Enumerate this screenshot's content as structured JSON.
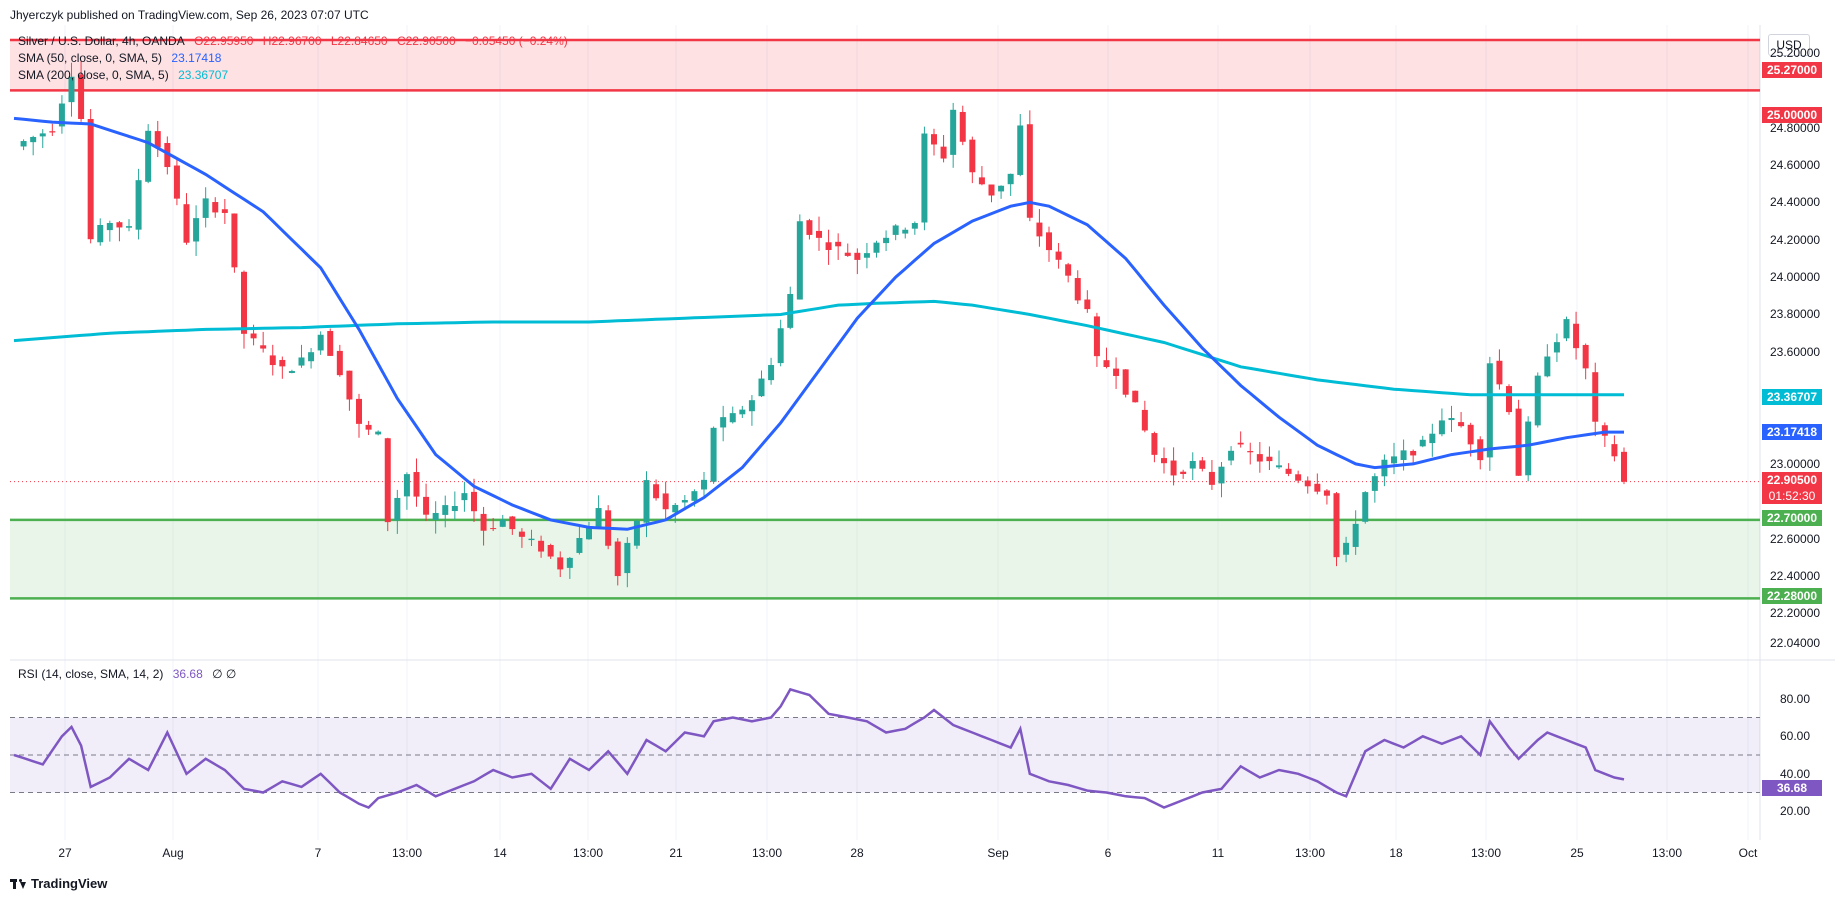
{
  "header": {
    "publisher": "Jhyerczyk published on TradingView.com, Sep 26, 2023 07:07 UTC",
    "symbol": "Silver / U.S. Dollar, 4h, OANDA",
    "open": "O22.95950",
    "high": "H22.96700",
    "low": "L22.84650",
    "close": "C22.90500",
    "change": "−0.05450 (−0.24%)",
    "sma50_label": "SMA (50, close, 0, SMA, 5)",
    "sma50_value": "23.17418",
    "sma200_label": "SMA (200, close, 0, SMA, 5)",
    "sma200_value": "23.36707",
    "rsi_label": "RSI (14, close, SMA, 14, 2)",
    "rsi_value": "36.68",
    "rsi_extra": "∅ ∅",
    "currency": "USD",
    "branding": "TradingView"
  },
  "colors": {
    "up": "#26a69a",
    "down": "#f23645",
    "sma50": "#2962ff",
    "sma200": "#00bcd4",
    "resistance": "#f23645",
    "support": "#4caf50",
    "rsi": "#7e57c2"
  },
  "levels": {
    "resistance_top": "25.27000",
    "resistance_bottom": "25.00000",
    "support_top": "22.70000",
    "support_bottom": "22.28000",
    "last_price": "22.90500",
    "countdown": "01:52:30",
    "sma200_tag": "23.36707",
    "sma50_tag": "23.17418",
    "rsi_tag": "36.68"
  },
  "chart_data": {
    "type": "candlestick",
    "ylim": [
      21.95,
      25.35
    ],
    "price_ticks": [
      "25.20000",
      "24.80000",
      "24.60000",
      "24.40000",
      "24.20000",
      "24.00000",
      "23.80000",
      "23.60000",
      "23.00000",
      "22.60000",
      "22.40000",
      "22.20000",
      "22.04000"
    ],
    "x_ticks": [
      "27",
      "Aug",
      "7",
      "13:00",
      "14",
      "13:00",
      "21",
      "13:00",
      "28",
      "Sep",
      "6",
      "11",
      "13:00",
      "18",
      "13:00",
      "25",
      "13:00",
      "Oct"
    ],
    "rsi_ticks": [
      "80.00",
      "60.00",
      "40.00",
      "20.00"
    ],
    "rsi_levels": [
      70,
      50,
      30
    ],
    "close_anchors": [
      [
        0,
        24.7
      ],
      [
        4,
        24.8
      ],
      [
        6,
        25.1
      ],
      [
        7,
        24.85
      ],
      [
        8,
        24.2
      ],
      [
        10,
        24.3
      ],
      [
        12,
        24.25
      ],
      [
        14,
        24.8
      ],
      [
        16,
        24.6
      ],
      [
        18,
        24.2
      ],
      [
        20,
        24.4
      ],
      [
        22,
        24.35
      ],
      [
        24,
        23.7
      ],
      [
        26,
        23.6
      ],
      [
        28,
        23.5
      ],
      [
        30,
        23.55
      ],
      [
        32,
        23.7
      ],
      [
        34,
        23.5
      ],
      [
        36,
        23.2
      ],
      [
        38,
        23.15
      ],
      [
        39,
        22.7
      ],
      [
        41,
        22.95
      ],
      [
        43,
        22.7
      ],
      [
        45,
        22.75
      ],
      [
        47,
        22.85
      ],
      [
        49,
        22.65
      ],
      [
        51,
        22.7
      ],
      [
        53,
        22.6
      ],
      [
        55,
        22.55
      ],
      [
        57,
        22.45
      ],
      [
        59,
        22.6
      ],
      [
        61,
        22.75
      ],
      [
        63,
        22.4
      ],
      [
        65,
        22.7
      ],
      [
        66,
        22.9
      ],
      [
        68,
        22.75
      ],
      [
        70,
        22.8
      ],
      [
        72,
        22.9
      ],
      [
        73,
        23.2
      ],
      [
        75,
        23.25
      ],
      [
        77,
        23.35
      ],
      [
        79,
        23.55
      ],
      [
        81,
        23.9
      ],
      [
        82,
        24.3
      ],
      [
        84,
        24.2
      ],
      [
        86,
        24.15
      ],
      [
        88,
        24.1
      ],
      [
        90,
        24.2
      ],
      [
        92,
        24.25
      ],
      [
        94,
        24.3
      ],
      [
        95,
        24.75
      ],
      [
        97,
        24.65
      ],
      [
        98,
        24.9
      ],
      [
        100,
        24.55
      ],
      [
        102,
        24.45
      ],
      [
        104,
        24.55
      ],
      [
        105,
        24.8
      ],
      [
        106,
        24.3
      ],
      [
        108,
        24.15
      ],
      [
        110,
        24.0
      ],
      [
        112,
        23.8
      ],
      [
        113,
        23.55
      ],
      [
        115,
        23.5
      ],
      [
        117,
        23.3
      ],
      [
        119,
        23.05
      ],
      [
        121,
        22.95
      ],
      [
        123,
        23.0
      ],
      [
        125,
        22.9
      ],
      [
        127,
        23.1
      ],
      [
        129,
        23.05
      ],
      [
        131,
        23.0
      ],
      [
        133,
        22.95
      ],
      [
        135,
        22.9
      ],
      [
        137,
        22.85
      ],
      [
        138,
        22.5
      ],
      [
        139,
        22.55
      ],
      [
        141,
        22.85
      ],
      [
        143,
        23.0
      ],
      [
        145,
        23.05
      ],
      [
        147,
        23.1
      ],
      [
        149,
        23.25
      ],
      [
        151,
        23.2
      ],
      [
        153,
        23.05
      ],
      [
        154,
        23.55
      ],
      [
        156,
        23.3
      ],
      [
        157,
        22.95
      ],
      [
        159,
        23.45
      ],
      [
        160,
        23.6
      ],
      [
        162,
        23.75
      ],
      [
        164,
        23.5
      ],
      [
        165,
        23.2
      ],
      [
        167,
        23.05
      ],
      [
        168,
        22.9
      ]
    ],
    "sma50_anchors": [
      [
        0,
        24.85
      ],
      [
        4,
        24.83
      ],
      [
        8,
        24.82
      ],
      [
        14,
        24.72
      ],
      [
        20,
        24.55
      ],
      [
        26,
        24.35
      ],
      [
        32,
        24.05
      ],
      [
        36,
        23.72
      ],
      [
        40,
        23.35
      ],
      [
        44,
        23.05
      ],
      [
        48,
        22.88
      ],
      [
        52,
        22.78
      ],
      [
        56,
        22.7
      ],
      [
        60,
        22.66
      ],
      [
        64,
        22.65
      ],
      [
        68,
        22.7
      ],
      [
        72,
        22.82
      ],
      [
        76,
        22.98
      ],
      [
        80,
        23.22
      ],
      [
        84,
        23.5
      ],
      [
        88,
        23.78
      ],
      [
        92,
        24.0
      ],
      [
        96,
        24.18
      ],
      [
        100,
        24.3
      ],
      [
        104,
        24.38
      ],
      [
        106,
        24.4
      ],
      [
        108,
        24.38
      ],
      [
        112,
        24.28
      ],
      [
        116,
        24.1
      ],
      [
        120,
        23.85
      ],
      [
        124,
        23.62
      ],
      [
        128,
        23.42
      ],
      [
        132,
        23.25
      ],
      [
        136,
        23.1
      ],
      [
        140,
        23.0
      ],
      [
        142,
        22.98
      ],
      [
        146,
        23.0
      ],
      [
        150,
        23.05
      ],
      [
        154,
        23.08
      ],
      [
        158,
        23.1
      ],
      [
        162,
        23.14
      ],
      [
        166,
        23.17
      ],
      [
        168,
        23.17
      ]
    ],
    "sma200_anchors": [
      [
        0,
        23.66
      ],
      [
        10,
        23.7
      ],
      [
        20,
        23.72
      ],
      [
        30,
        23.73
      ],
      [
        40,
        23.75
      ],
      [
        50,
        23.76
      ],
      [
        60,
        23.76
      ],
      [
        70,
        23.78
      ],
      [
        80,
        23.8
      ],
      [
        86,
        23.85
      ],
      [
        90,
        23.86
      ],
      [
        96,
        23.87
      ],
      [
        100,
        23.85
      ],
      [
        106,
        23.8
      ],
      [
        112,
        23.74
      ],
      [
        120,
        23.65
      ],
      [
        128,
        23.52
      ],
      [
        136,
        23.45
      ],
      [
        144,
        23.4
      ],
      [
        152,
        23.37
      ],
      [
        160,
        23.37
      ],
      [
        168,
        23.37
      ]
    ],
    "rsi_anchors": [
      [
        0,
        50
      ],
      [
        3,
        45
      ],
      [
        5,
        60
      ],
      [
        6,
        65
      ],
      [
        7,
        55
      ],
      [
        8,
        33
      ],
      [
        10,
        38
      ],
      [
        12,
        48
      ],
      [
        14,
        42
      ],
      [
        16,
        62
      ],
      [
        18,
        40
      ],
      [
        20,
        48
      ],
      [
        22,
        42
      ],
      [
        24,
        32
      ],
      [
        26,
        30
      ],
      [
        28,
        36
      ],
      [
        30,
        33
      ],
      [
        32,
        40
      ],
      [
        34,
        30
      ],
      [
        36,
        24
      ],
      [
        37,
        22
      ],
      [
        38,
        27
      ],
      [
        40,
        30
      ],
      [
        42,
        34
      ],
      [
        44,
        28
      ],
      [
        46,
        32
      ],
      [
        48,
        36
      ],
      [
        50,
        42
      ],
      [
        52,
        38
      ],
      [
        54,
        40
      ],
      [
        56,
        32
      ],
      [
        58,
        48
      ],
      [
        60,
        42
      ],
      [
        62,
        52
      ],
      [
        64,
        40
      ],
      [
        66,
        58
      ],
      [
        68,
        52
      ],
      [
        70,
        62
      ],
      [
        72,
        60
      ],
      [
        73,
        68
      ],
      [
        75,
        70
      ],
      [
        77,
        68
      ],
      [
        79,
        70
      ],
      [
        80,
        76
      ],
      [
        81,
        85
      ],
      [
        83,
        82
      ],
      [
        85,
        72
      ],
      [
        87,
        70
      ],
      [
        89,
        68
      ],
      [
        91,
        62
      ],
      [
        93,
        64
      ],
      [
        95,
        70
      ],
      [
        96,
        74
      ],
      [
        98,
        66
      ],
      [
        100,
        62
      ],
      [
        102,
        58
      ],
      [
        104,
        54
      ],
      [
        105,
        64
      ],
      [
        106,
        40
      ],
      [
        108,
        36
      ],
      [
        110,
        34
      ],
      [
        112,
        31
      ],
      [
        114,
        30
      ],
      [
        116,
        28
      ],
      [
        118,
        27
      ],
      [
        120,
        22
      ],
      [
        122,
        26
      ],
      [
        124,
        30
      ],
      [
        126,
        32
      ],
      [
        128,
        44
      ],
      [
        130,
        38
      ],
      [
        132,
        42
      ],
      [
        134,
        40
      ],
      [
        136,
        36
      ],
      [
        138,
        30
      ],
      [
        139,
        28
      ],
      [
        141,
        52
      ],
      [
        143,
        58
      ],
      [
        145,
        54
      ],
      [
        147,
        60
      ],
      [
        149,
        56
      ],
      [
        151,
        60
      ],
      [
        153,
        50
      ],
      [
        154,
        68
      ],
      [
        156,
        54
      ],
      [
        157,
        48
      ],
      [
        159,
        58
      ],
      [
        160,
        62
      ],
      [
        162,
        58
      ],
      [
        164,
        54
      ],
      [
        165,
        42
      ],
      [
        167,
        38
      ],
      [
        168,
        37
      ]
    ]
  }
}
